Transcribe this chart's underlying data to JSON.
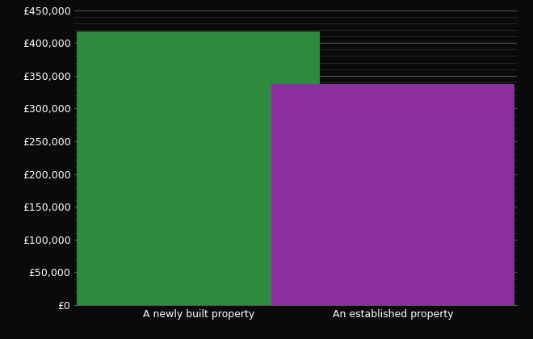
{
  "categories": [
    "A newly built property",
    "An established property"
  ],
  "values": [
    417000,
    337000
  ],
  "bar_colors": [
    "#2e8b3e",
    "#8b2fa0"
  ],
  "background_color": "#0a0a0a",
  "text_color": "#ffffff",
  "major_grid_color": "#555555",
  "minor_grid_color": "#333333",
  "ylim": [
    0,
    450000
  ],
  "ytick_step": 50000,
  "bar_width": 0.55,
  "bar_positions": [
    0.28,
    0.72
  ],
  "minor_tick_count": 4
}
